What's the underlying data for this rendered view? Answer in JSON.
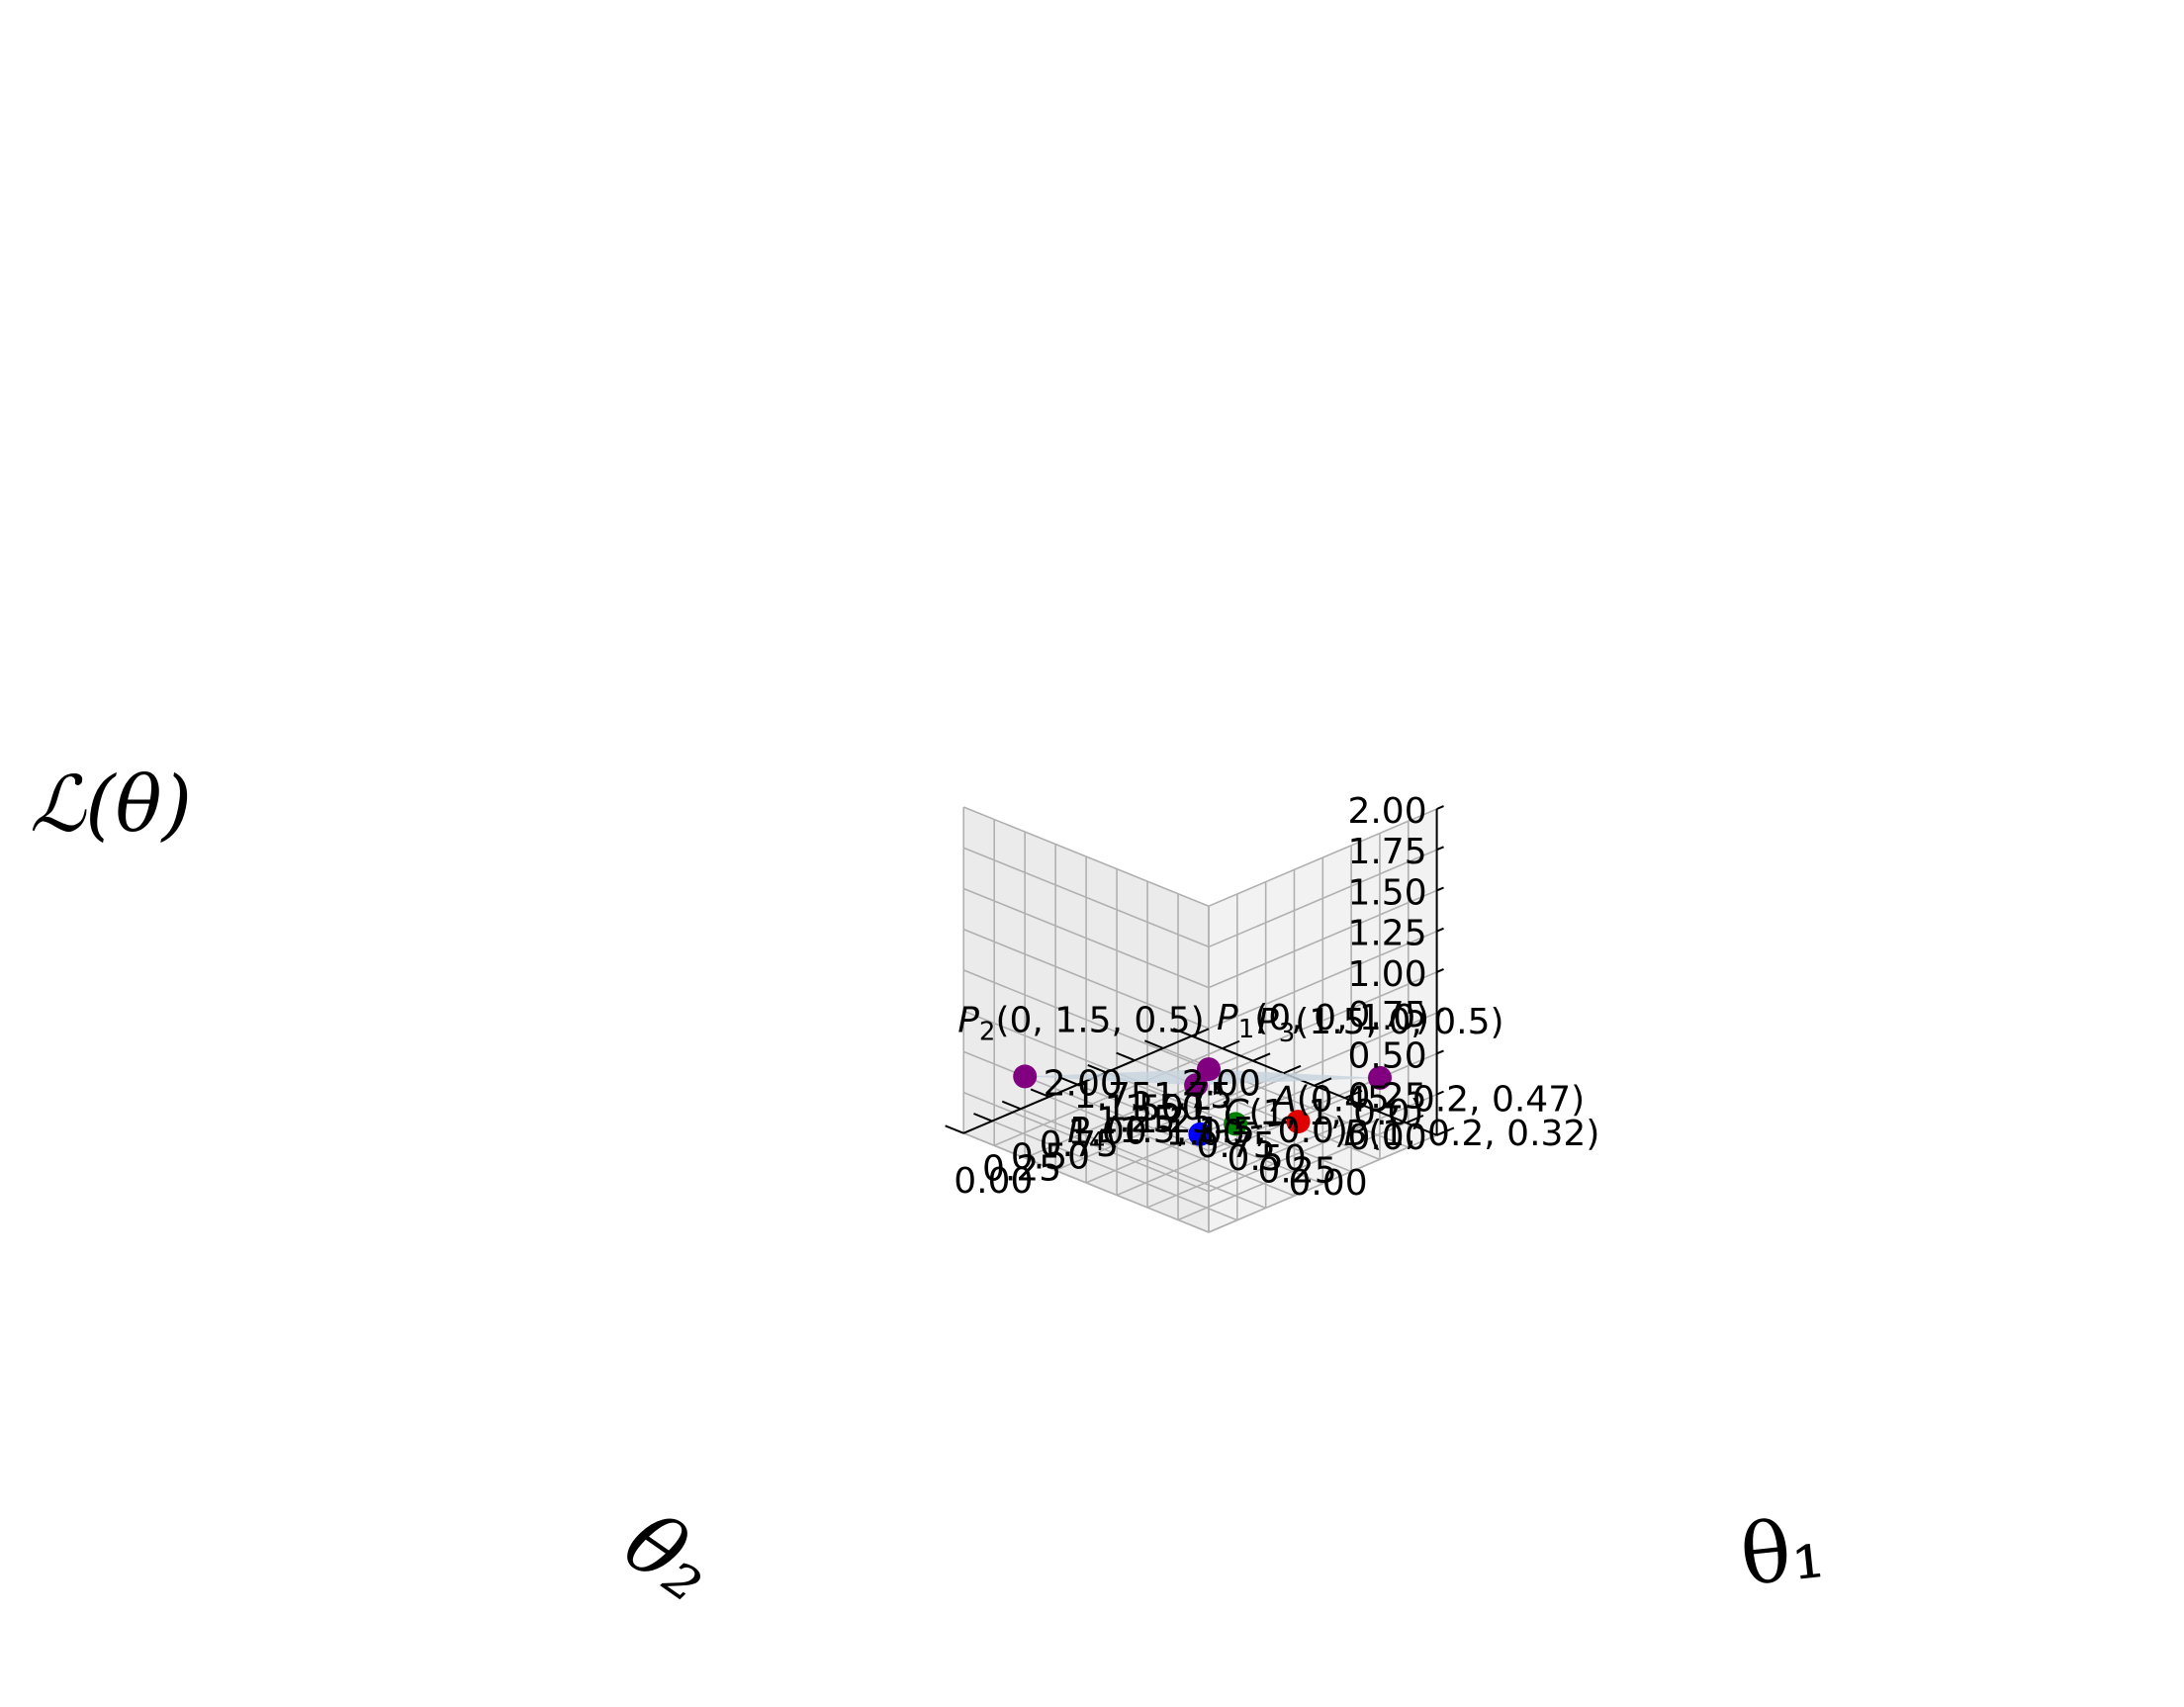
{
  "chart_data": {
    "type": "surface3d",
    "xlabel": "θ₁",
    "ylabel": "θ₂",
    "zlabel": "ℒ(θ)",
    "xlim": [
      0,
      2
    ],
    "ylim": [
      0,
      2
    ],
    "zlim": [
      0,
      2
    ],
    "x_ticks": [
      "0.00",
      "0.25",
      "0.50",
      "0.75",
      "1.00",
      "1.25",
      "1.50",
      "1.75",
      "2.00"
    ],
    "y_ticks": [
      "0.00",
      "0.25",
      "0.50",
      "0.75",
      "1.00",
      "1.25",
      "1.50",
      "1.75",
      "2.00"
    ],
    "z_ticks": [
      "0.00",
      "0.25",
      "0.50",
      "0.75",
      "1.00",
      "1.25",
      "1.50",
      "1.75",
      "2.00"
    ],
    "grid": true,
    "surface": {
      "color": "#c7d3de",
      "domain": {
        "theta1": [
          0,
          1.5
        ],
        "theta2": [
          0,
          1.5
        ]
      },
      "corners": [
        {
          "theta1": 0,
          "theta2": 0,
          "loss": 1.0
        },
        {
          "theta1": 0,
          "theta2": 1.5,
          "loss": 0.5
        },
        {
          "theta1": 1.5,
          "theta2": 1.5,
          "loss": 0.0
        },
        {
          "theta1": 1.5,
          "theta2": 0,
          "loss": 0.5
        }
      ]
    },
    "points": [
      {
        "id": "P1",
        "sym": "P",
        "sub": "1",
        "coords": "(0, 0, 1.0)",
        "x": 0,
        "y": 0,
        "z": 1.0,
        "color": "#800080"
      },
      {
        "id": "P2",
        "sym": "P",
        "sub": "2",
        "coords": "(0, 1.5, 0.5)",
        "x": 0,
        "y": 1.5,
        "z": 0.5,
        "color": "#800080"
      },
      {
        "id": "P3",
        "sym": "P",
        "sub": "3",
        "coords": "(1.5, 0, 0.5)",
        "x": 1.5,
        "y": 0,
        "z": 0.5,
        "color": "#800080"
      },
      {
        "id": "P4",
        "sym": "P",
        "sub": "4",
        "coords": "(1.5, 1.5, 0.0)",
        "x": 1.5,
        "y": 1.5,
        "z": 0.0,
        "color": "#800080"
      },
      {
        "id": "A",
        "sym": "A",
        "sub": "",
        "coords": "(0.45, 0.2, 0.47)",
        "x": 0.45,
        "y": 0.2,
        "z": 0.47,
        "color": "#008000"
      },
      {
        "id": "B",
        "sym": "B",
        "sub": "",
        "coords": "(1, 0.2, 0.32)",
        "x": 1,
        "y": 0.2,
        "z": 0.32,
        "color": "#e00000"
      },
      {
        "id": "C",
        "sym": "C",
        "sub": "",
        "coords": "(1, 1, 0.0)",
        "x": 1,
        "y": 1,
        "z": 0.0,
        "color": "#0000ff"
      }
    ],
    "path": [
      "P1",
      "A",
      "B",
      "C",
      "P4"
    ],
    "path_style": "dashed"
  }
}
